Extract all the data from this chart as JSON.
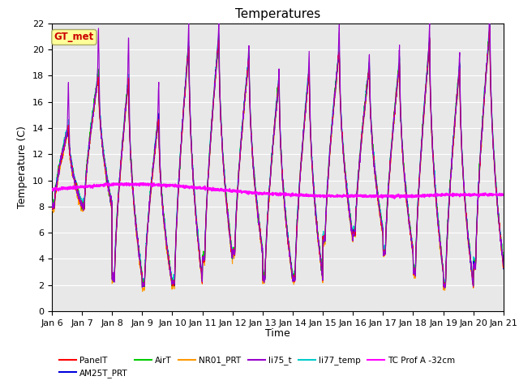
{
  "title": "Temperatures",
  "xlabel": "Time",
  "ylabel": "Temperature (C)",
  "ylim": [
    0,
    22
  ],
  "xlim": [
    0,
    15
  ],
  "x_tick_labels": [
    "Jan 6",
    "Jan 7",
    "Jan 8",
    "Jan 9",
    "Jan 10",
    "Jan 11",
    "Jan 12",
    "Jan 13",
    "Jan 14",
    "Jan 15",
    "Jan 16",
    "Jan 17",
    "Jan 18",
    "Jan 19",
    "Jan 20",
    "Jan 21"
  ],
  "series_colors": {
    "PanelT": "#ff0000",
    "AM25T_PRT": "#0000dd",
    "AirT": "#00cc00",
    "NR01_PRT": "#ff9900",
    "li75_t": "#9900cc",
    "li77_temp": "#00cccc",
    "TC Prof A -32cm": "#ff00ff"
  },
  "annotation_text": "GT_met",
  "annotation_color": "#cc0000",
  "annotation_bg": "#ffff99",
  "background_color": "#ffffff",
  "plot_bg_color": "#e8e8e8",
  "grid_color": "#ffffff",
  "day_peaks": [
    14.0,
    18.0,
    17.8,
    14.9,
    20.5,
    21.0,
    19.5,
    17.8,
    18.5,
    20.0,
    18.7,
    19.0,
    20.6,
    18.8,
    21.7
  ],
  "day_troughs": [
    8.0,
    8.0,
    2.5,
    2.0,
    2.2,
    4.0,
    4.5,
    2.5,
    2.5,
    5.5,
    6.0,
    4.5,
    3.0,
    2.0,
    3.5
  ],
  "tc_values": [
    9.3,
    9.5,
    9.7,
    9.7,
    9.6,
    9.4,
    9.2,
    9.0,
    8.9,
    8.8,
    8.8,
    8.8,
    8.8,
    8.9,
    8.9,
    8.9
  ],
  "li75_extra_peak": [
    3.5,
    3.8,
    3.2,
    2.8,
    1.5,
    1.2,
    1.0,
    0.8,
    1.5,
    2.0,
    1.2,
    1.5,
    1.5,
    1.0,
    2.0
  ]
}
